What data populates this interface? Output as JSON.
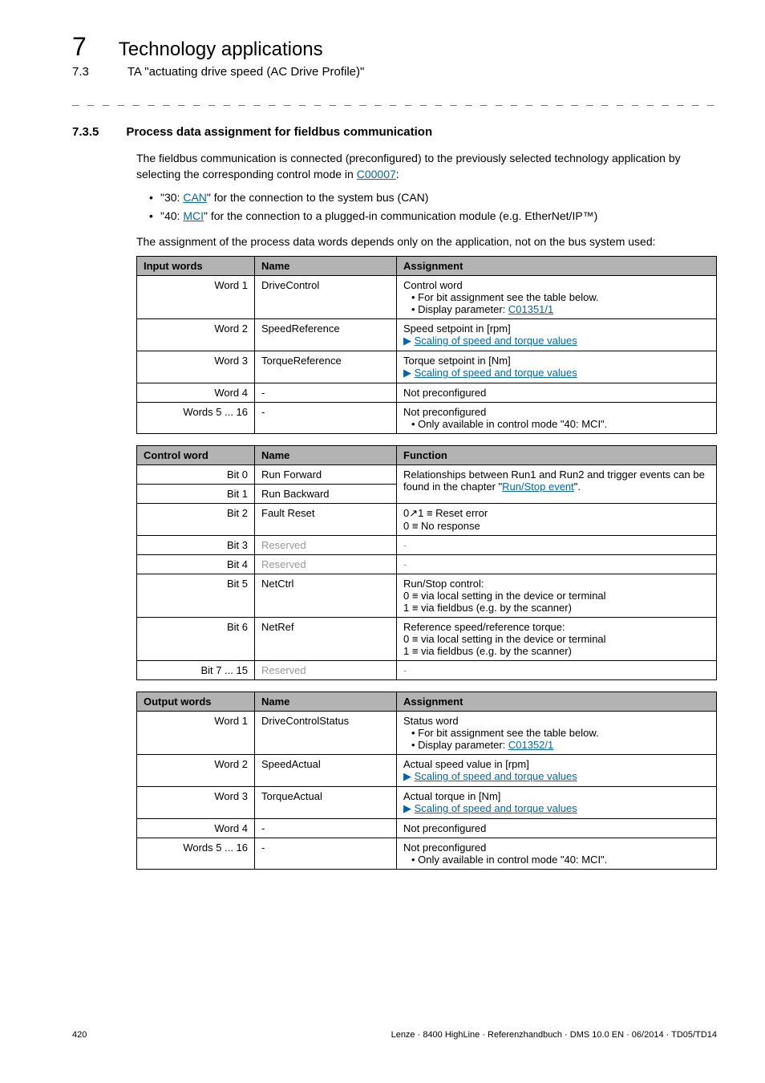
{
  "header": {
    "chapter_num": "7",
    "chapter_title": "Technology applications",
    "sub_num": "7.3",
    "sub_title": "TA \"actuating drive speed (AC Drive Profile)\""
  },
  "section": {
    "num": "7.3.5",
    "title": "Process data assignment for fieldbus communication"
  },
  "para1_a": "The fieldbus communication is connected (preconfigured) to the previously selected technology application by selecting the corresponding control mode in ",
  "para1_link": "C00007",
  "para1_b": ":",
  "bullet1_a": "\"30: ",
  "bullet1_link": "CAN",
  "bullet1_b": "\" for the connection to the system bus (CAN)",
  "bullet2_a": "\"40: ",
  "bullet2_link": "MCI",
  "bullet2_b": "\" for the connection to a plugged-in communication module (e.g. EtherNet/IP™)",
  "para2": "The assignment of the process data words depends only on the application, not on the bus system used:",
  "table1": {
    "headers": [
      "Input words",
      "Name",
      "Assignment"
    ],
    "rows": [
      {
        "c0": "Word 1",
        "c1": "DriveControl",
        "c2_line1": "Control word",
        "c2_sub1": "• For bit assignment see the table below.",
        "c2_sub2_a": "• Display parameter: ",
        "c2_sub2_link": "C01351/1"
      },
      {
        "c0": "Word 2",
        "c1": "SpeedReference",
        "c2_line1": "Speed setpoint in [rpm]",
        "c2_link": "Scaling of speed and torque values"
      },
      {
        "c0": "Word 3",
        "c1": "TorqueReference",
        "c2_line1": "Torque setpoint in [Nm]",
        "c2_link": "Scaling of speed and torque values"
      },
      {
        "c0": "Word 4",
        "c1": "-",
        "c2_line1": "Not preconfigured"
      },
      {
        "c0": "Words 5 ... 16",
        "c1": "-",
        "c2_line1": "Not preconfigured",
        "c2_sub1": "• Only available in control mode \"40: MCI\"."
      }
    ]
  },
  "table2": {
    "headers": [
      "Control word",
      "Name",
      "Function"
    ],
    "rows": [
      {
        "c0": "Bit 0",
        "c1": "Run Forward",
        "c2_a": "Relationships between Run1 and Run2 and trigger events can be found in the chapter \"",
        "c2_link": "Run/Stop event",
        "c2_b": "\"."
      },
      {
        "c0": "Bit 1",
        "c1": "Run Backward"
      },
      {
        "c0": "Bit 2",
        "c1": "Fault Reset",
        "c2_line1": "0↗1 ≡ Reset error",
        "c2_line2": "0 ≡ No response"
      },
      {
        "c0": "Bit 3",
        "c1": "Reserved",
        "reserved": true,
        "c2_line1": "-"
      },
      {
        "c0": "Bit 4",
        "c1": "Reserved",
        "reserved": true,
        "c2_line1": "-"
      },
      {
        "c0": "Bit 5",
        "c1": "NetCtrl",
        "c2_line1": "Run/Stop control:",
        "c2_line2": "0 ≡ via local setting in the device or terminal",
        "c2_line3": "1 ≡ via fieldbus (e.g. by the scanner)"
      },
      {
        "c0": "Bit 6",
        "c1": "NetRef",
        "c2_line1": "Reference speed/reference torque:",
        "c2_line2": "0 ≡ via local setting in the device or terminal",
        "c2_line3": "1 ≡ via fieldbus (e.g. by the scanner)"
      },
      {
        "c0": "Bit 7 ... 15",
        "c1": "Reserved",
        "reserved": true,
        "c2_line1": "-"
      }
    ]
  },
  "table3": {
    "headers": [
      "Output words",
      "Name",
      "Assignment"
    ],
    "rows": [
      {
        "c0": "Word 1",
        "c1": "DriveControlStatus",
        "c2_line1": "Status word",
        "c2_sub1": "• For bit assignment see the table below.",
        "c2_sub2_a": "• Display parameter: ",
        "c2_sub2_link": "C01352/1"
      },
      {
        "c0": "Word 2",
        "c1": "SpeedActual",
        "c2_line1": "Actual speed value in [rpm]",
        "c2_link": "Scaling of speed and torque values"
      },
      {
        "c0": "Word 3",
        "c1": "TorqueActual",
        "c2_line1": "Actual torque in [Nm]",
        "c2_link": "Scaling of speed and torque values"
      },
      {
        "c0": "Word 4",
        "c1": "-",
        "c2_line1": "Not preconfigured"
      },
      {
        "c0": "Words 5 ... 16",
        "c1": "-",
        "c2_line1": "Not preconfigured",
        "c2_sub1": "• Only available in control mode \"40: MCI\"."
      }
    ]
  },
  "footer": {
    "page": "420",
    "info": "Lenze · 8400 HighLine · Referenzhandbuch · DMS 10.0 EN · 06/2014 · TD05/TD14"
  },
  "dashes": "_ _ _ _ _ _ _ _ _ _ _ _ _ _ _ _ _ _ _ _ _ _ _ _ _ _ _ _ _ _ _ _ _ _ _ _ _ _ _ _ _ _ _ _ _ _ _ _ _ _ _ _ _ _ _ _ _ _ _ _ _ _ _ _"
}
